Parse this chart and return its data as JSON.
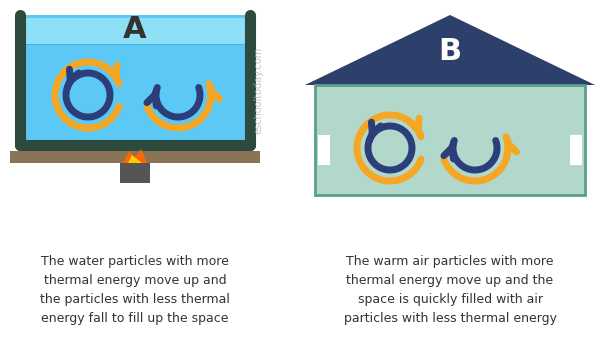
{
  "bg_color": "#ffffff",
  "orange": "#F5A623",
  "navy": "#2C3E7A",
  "water_blue": "#5BC8F5",
  "tank_border": "#2d4a3e",
  "shelf_color": "#8B7355",
  "house_roof": "#2d3f6b",
  "house_wall": "#b2d8cc",
  "label_A": "A",
  "label_B": "B",
  "text_A": "The water particles with more\nthermal energy move up and\nthe particles with less thermal\nenergy fall to fill up the space",
  "text_B": "The warm air particles with more\nthermal energy move up and the\nspace is quickly filled with air\nparticles with less thermal energy",
  "watermark": "eschooltoday.com"
}
